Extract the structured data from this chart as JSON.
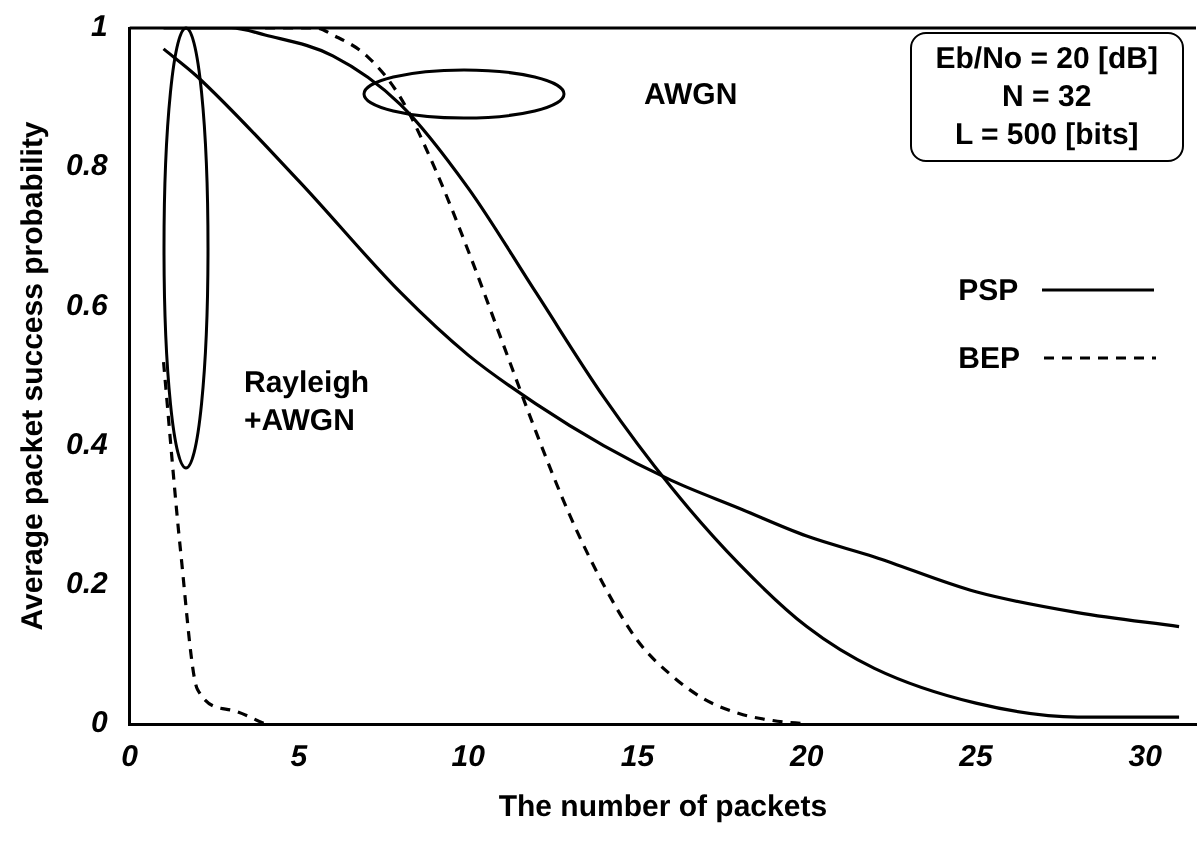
{
  "chart_data": {
    "type": "line",
    "xlabel": "The number of packets",
    "ylabel": "Average packet success probability",
    "xlim": [
      0,
      31.5
    ],
    "xticks": [
      0,
      5,
      10,
      15,
      20,
      25,
      30
    ],
    "ylim": [
      0,
      1
    ],
    "yticks": [
      0,
      0.2,
      0.4,
      0.6,
      0.8,
      1
    ],
    "grid": false,
    "legend": "right",
    "series": [
      {
        "name": "PSP",
        "color": "#000000",
        "line_style": "solid",
        "x": [
          1,
          2,
          5,
          8,
          10,
          12,
          14,
          16,
          18,
          20,
          22,
          25,
          28,
          31
        ],
        "values": [
          0.97,
          0.93,
          0.78,
          0.62,
          0.53,
          0.46,
          0.4,
          0.35,
          0.31,
          0.27,
          0.24,
          0.19,
          0.16,
          0.14
        ]
      },
      {
        "color": "#000000",
        "line_style": "solid",
        "x": [
          1,
          3,
          4,
          6,
          8,
          10,
          12,
          14,
          16,
          18,
          20,
          22,
          25,
          28,
          31
        ],
        "values": [
          1,
          1,
          0.99,
          0.96,
          0.89,
          0.77,
          0.62,
          0.47,
          0.34,
          0.23,
          0.14,
          0.08,
          0.03,
          0.01,
          0.01
        ]
      },
      {
        "name": "BEP",
        "color": "#000000",
        "line_style": "dashed",
        "x": [
          4,
          5.5,
          6,
          7,
          8,
          9,
          10,
          11,
          12,
          13,
          14,
          15,
          16,
          17,
          18,
          19,
          20
        ],
        "values": [
          1,
          1,
          0.99,
          0.96,
          0.9,
          0.8,
          0.68,
          0.55,
          0.42,
          0.3,
          0.2,
          0.12,
          0.07,
          0.035,
          0.015,
          0.005,
          0
        ]
      },
      {
        "color": "#000000",
        "line_style": "dashed",
        "x": [
          1,
          1.5,
          2,
          3,
          4
        ],
        "values": [
          0.52,
          0.25,
          0.05,
          0.02,
          0
        ]
      }
    ],
    "annotations": [
      "AWGN",
      "Rayleigh\n+AWGN",
      "Eb/No = 20 [dB]",
      "N = 32",
      "L = 500 [bits]"
    ]
  }
}
